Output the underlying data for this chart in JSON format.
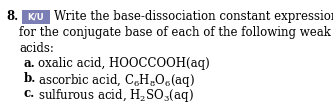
{
  "background_color": "#ffffff",
  "number": "8.",
  "badge_text": "K/U",
  "badge_bg": "#7B7DB5",
  "badge_fg": "#ffffff",
  "line1": "Write the base-dissociation constant expressions",
  "line2": "for the conjugate base of each of the following weak",
  "line3": "acids:",
  "item_a_label": "a.",
  "item_a_text": "oxalic acid, HOOCCOOH(aq)",
  "item_b_label": "b.",
  "item_b_text": "ascorbic acid, $\\mathregular{C_6H_8O_6}$(aq)",
  "item_c_label": "c.",
  "item_c_text": "sulfurous acid, $\\mathregular{H_2SO_3}$(aq)",
  "font_size": 8.5,
  "bold_size": 8.5
}
